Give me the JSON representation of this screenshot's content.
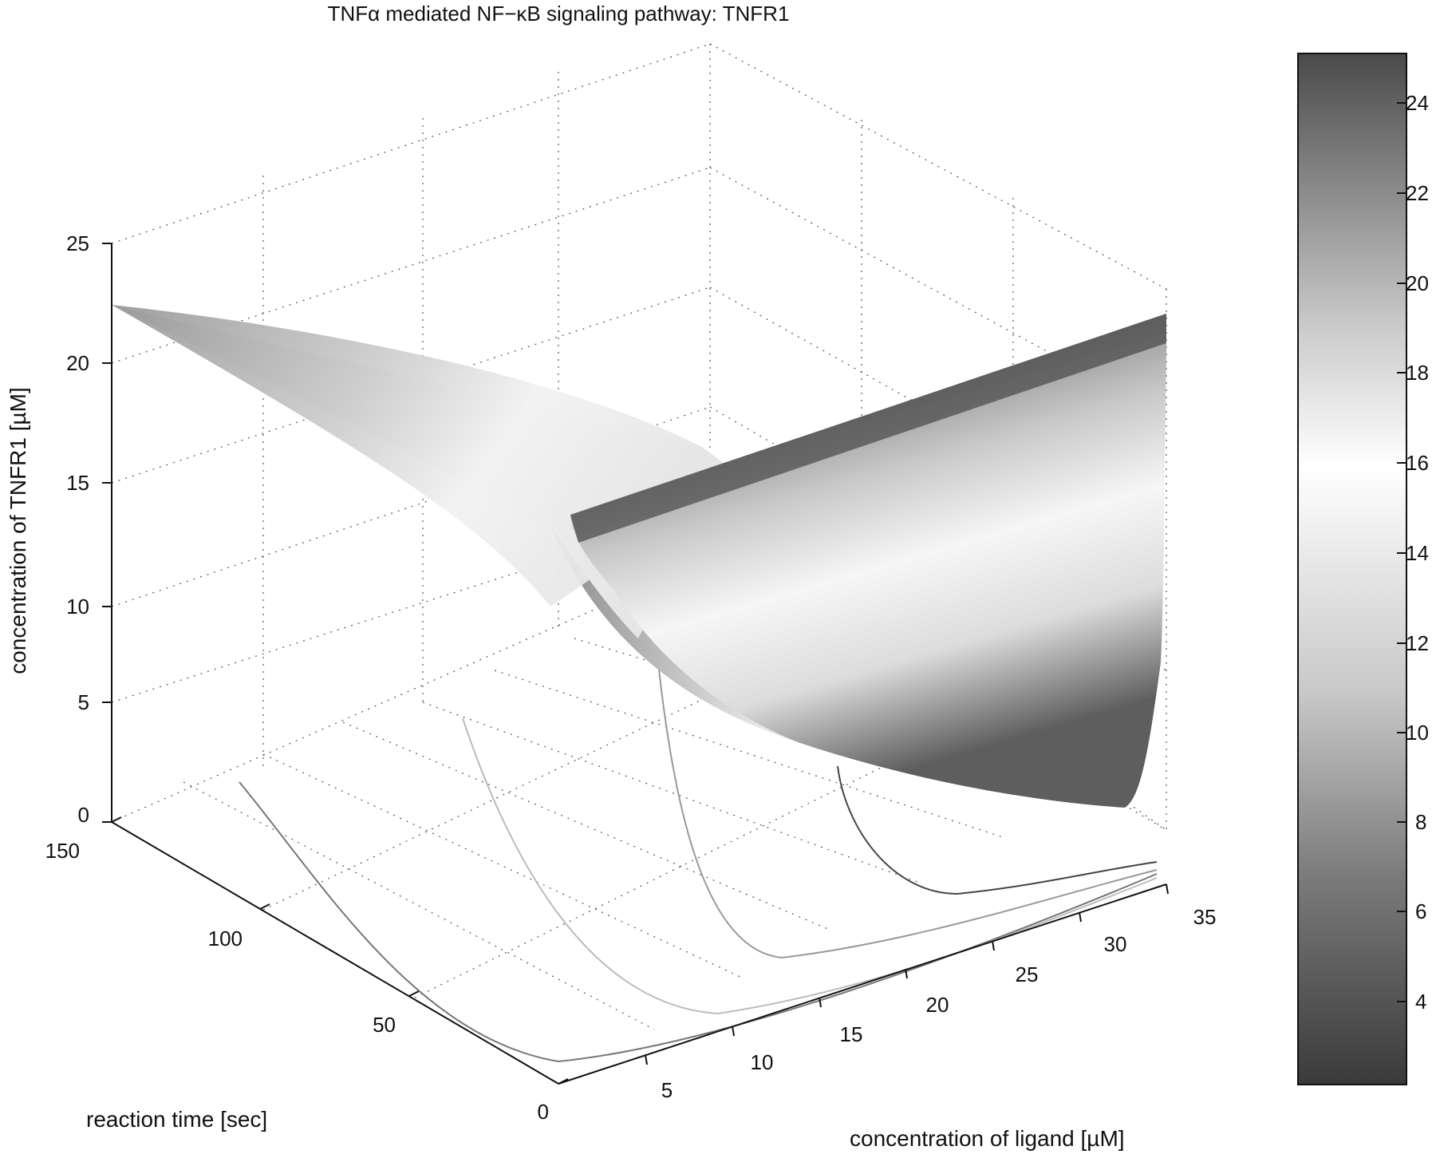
{
  "chart_data": {
    "type": "surface",
    "title": "TNFα mediated NF−κB signaling pathway: TNFR1",
    "xlabel": "concentration of ligand [µM]",
    "ylabel": "reaction time [sec]",
    "zlabel": "concentration of TNFR1 [µM]",
    "xlim": [
      0,
      35
    ],
    "ylim": [
      0,
      150
    ],
    "zlim": [
      0,
      25
    ],
    "x_ticks": [
      "5",
      "10",
      "15",
      "20",
      "25",
      "30",
      "35"
    ],
    "y_ticks": [
      "0",
      "50",
      "100",
      "150"
    ],
    "z_ticks": [
      "0",
      "5",
      "10",
      "15",
      "20",
      "25"
    ],
    "colorbar": {
      "ticks": [
        "4",
        "6",
        "8",
        "10",
        "12",
        "14",
        "16",
        "18",
        "20",
        "22",
        "24"
      ],
      "range": [
        2,
        25
      ]
    },
    "grid": true,
    "surface_ridge": [
      {
        "ligand": 0,
        "time": 150,
        "tnfr1": 22.5
      },
      {
        "ligand": 11,
        "time": 20,
        "tnfr1": 10
      },
      {
        "ligand": 35,
        "time": 150,
        "tnfr1": 22.5
      }
    ]
  }
}
